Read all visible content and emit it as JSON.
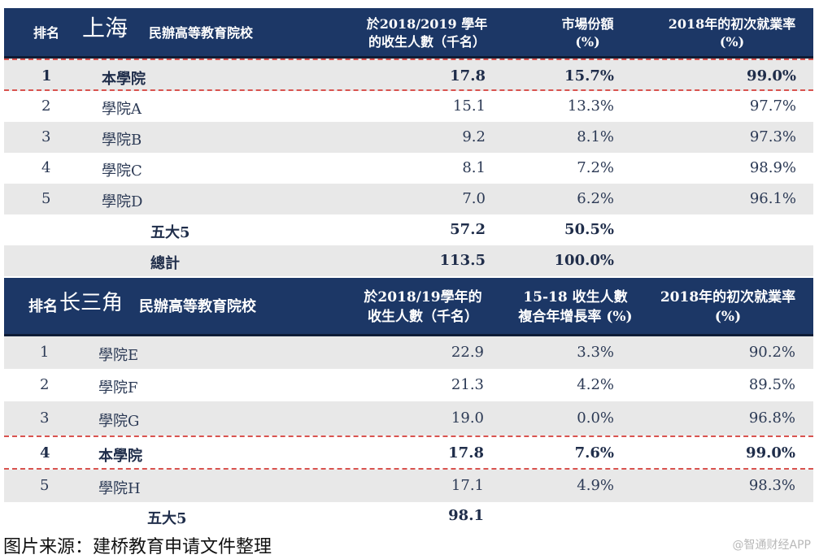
{
  "table1": {
    "header": {
      "rank": "排名",
      "region": "上海",
      "school": "民辦高等教育院校",
      "enroll": "於2018/2019 學年\n的收生人數（千名）",
      "share": "市場份額\n(%)",
      "employ": "2018年的初次就業率\n(%)"
    },
    "rows": [
      {
        "rank": "1",
        "name": "本學院",
        "enroll": "17.8",
        "share": "15.7%",
        "employ": "99.0%"
      },
      {
        "rank": "2",
        "name": "學院A",
        "enroll": "15.1",
        "share": "13.3%",
        "employ": "97.7%"
      },
      {
        "rank": "3",
        "name": "學院B",
        "enroll": "9.2",
        "share": "8.1%",
        "employ": "97.3%"
      },
      {
        "rank": "4",
        "name": "學院C",
        "enroll": "8.1",
        "share": "7.2%",
        "employ": "98.9%"
      },
      {
        "rank": "5",
        "name": "學院D",
        "enroll": "7.0",
        "share": "6.2%",
        "employ": "96.1%"
      }
    ],
    "top5": {
      "label": "五大5",
      "enroll": "57.2",
      "share": "50.5%"
    },
    "total": {
      "label": "總計",
      "enroll": "113.5",
      "share": "100.0%"
    }
  },
  "table2": {
    "header": {
      "rank": "排名",
      "region": "长三角",
      "school": "民辦高等教育院校",
      "enroll": "於2018/19學年的\n收生人數（千名）",
      "growth": "15-18 收生人數\n複合年增長率 (%)",
      "employ": "2018年的初次就業率\n(%)"
    },
    "rows": [
      {
        "rank": "1",
        "name": "學院E",
        "enroll": "22.9",
        "growth": "3.3%",
        "employ": "90.2%"
      },
      {
        "rank": "2",
        "name": "學院F",
        "enroll": "21.3",
        "growth": "4.2%",
        "employ": "89.5%"
      },
      {
        "rank": "3",
        "name": "學院G",
        "enroll": "19.0",
        "growth": "0.0%",
        "employ": "96.8%"
      },
      {
        "rank": "4",
        "name": "本學院",
        "enroll": "17.8",
        "growth": "7.6%",
        "employ": "99.0%"
      },
      {
        "rank": "5",
        "name": "學院H",
        "enroll": "17.1",
        "growth": "4.9%",
        "employ": "98.3%"
      }
    ],
    "top5": {
      "label": "五大5",
      "enroll": "98.1"
    }
  },
  "source": "图片来源：建桥教育申请文件整理",
  "watermark": "@智通财经APP",
  "colors": {
    "header": "#1c3766",
    "stripe": "#e8e8e8",
    "highlight_dash": "#d9534f"
  }
}
